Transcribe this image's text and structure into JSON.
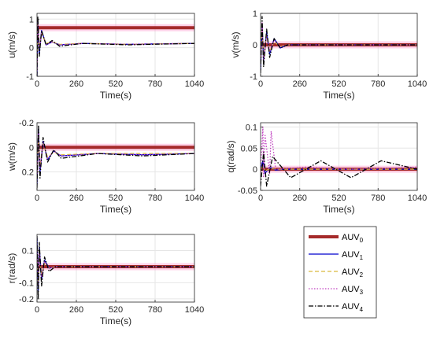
{
  "chart_data": [
    {
      "type": "line",
      "xlabel": "Time(s)",
      "ylabel": "u(m/s)",
      "xlim": [
        0,
        1040
      ],
      "ylim": [
        -1,
        1.2
      ],
      "y_reversed": false,
      "xticks": [
        0,
        260,
        520,
        780,
        1040
      ],
      "xticklabels": [
        "0",
        "260",
        "520",
        "780",
        "1040"
      ],
      "yticks": [
        -1,
        0,
        1
      ],
      "yticklabels": [
        "-1",
        "0",
        "1"
      ],
      "grid": true,
      "series": [
        {
          "name": "AUV0",
          "x": [
            0,
            30,
            1040
          ],
          "y": [
            0.7,
            0.7,
            0.7
          ]
        },
        {
          "name": "AUV1",
          "x": [
            0,
            5,
            15,
            30,
            60,
            100,
            150,
            300,
            600,
            1040
          ],
          "y": [
            -1.0,
            0.9,
            -0.2,
            0.6,
            0.1,
            0.2,
            0.1,
            0.15,
            0.12,
            0.15
          ]
        },
        {
          "name": "AUV2",
          "x": [
            0,
            5,
            15,
            30,
            60,
            100,
            150,
            300,
            600,
            1040
          ],
          "y": [
            -0.8,
            0.8,
            0.0,
            0.5,
            0.15,
            0.2,
            0.12,
            0.15,
            0.12,
            0.15
          ]
        },
        {
          "name": "AUV3",
          "x": [
            0,
            5,
            15,
            30,
            60,
            100,
            150,
            300,
            600,
            1040
          ],
          "y": [
            -0.9,
            1.0,
            -0.1,
            0.55,
            0.1,
            0.2,
            0.1,
            0.15,
            0.12,
            0.15
          ]
        },
        {
          "name": "AUV4",
          "x": [
            0,
            5,
            15,
            30,
            60,
            100,
            150,
            300,
            600,
            1040
          ],
          "y": [
            -1.0,
            1.1,
            -0.3,
            0.6,
            0.1,
            0.25,
            0.05,
            0.15,
            0.1,
            0.15
          ]
        }
      ]
    },
    {
      "type": "line",
      "xlabel": "Time(s)",
      "ylabel": "v(m/s)",
      "xlim": [
        0,
        1040
      ],
      "ylim": [
        -1,
        1
      ],
      "y_reversed": false,
      "xticks": [
        0,
        260,
        520,
        780,
        1040
      ],
      "xticklabels": [
        "0",
        "260",
        "520",
        "780",
        "1040"
      ],
      "yticks": [
        -1,
        0,
        1
      ],
      "yticklabels": [
        "-1",
        "0",
        "1"
      ],
      "grid": true,
      "series": [
        {
          "name": "AUV0",
          "x": [
            0,
            1040
          ],
          "y": [
            0,
            0
          ]
        },
        {
          "name": "AUV1",
          "x": [
            0,
            10,
            20,
            40,
            60,
            90,
            130,
            180,
            1040
          ],
          "y": [
            -0.8,
            0.6,
            -0.5,
            0.4,
            -0.3,
            0.2,
            -0.1,
            0.0,
            0.0
          ]
        },
        {
          "name": "AUV2",
          "x": [
            0,
            10,
            20,
            40,
            60,
            90,
            130,
            180,
            1040
          ],
          "y": [
            -0.6,
            0.5,
            -0.4,
            0.3,
            -0.2,
            0.1,
            -0.05,
            0.0,
            0.0
          ]
        },
        {
          "name": "AUV3",
          "x": [
            0,
            10,
            20,
            40,
            60,
            90,
            130,
            180,
            1040
          ],
          "y": [
            -0.7,
            0.7,
            -0.5,
            0.3,
            -0.2,
            0.15,
            -0.05,
            0.0,
            0.0
          ]
        },
        {
          "name": "AUV4",
          "x": [
            0,
            10,
            20,
            40,
            60,
            90,
            130,
            180,
            1040
          ],
          "y": [
            -0.9,
            0.9,
            -0.7,
            0.5,
            -0.4,
            0.2,
            -0.1,
            0.0,
            0.0
          ]
        }
      ]
    },
    {
      "type": "line",
      "xlabel": "Time(s)",
      "ylabel": "w(m/s)",
      "xlim": [
        0,
        1040
      ],
      "ylim": [
        -0.2,
        0.35
      ],
      "y_reversed": true,
      "xticks": [
        0,
        260,
        520,
        780,
        1040
      ],
      "xticklabels": [
        "0",
        "260",
        "520",
        "780",
        "1040"
      ],
      "yticks": [
        -0.2,
        0,
        0.2
      ],
      "yticklabels": [
        "-0.2",
        "0",
        "0.2"
      ],
      "grid": true,
      "series": [
        {
          "name": "AUV0",
          "x": [
            0,
            1040
          ],
          "y": [
            0,
            0
          ]
        },
        {
          "name": "AUV1",
          "x": [
            0,
            10,
            20,
            40,
            70,
            110,
            160,
            400,
            700,
            1040
          ],
          "y": [
            0.3,
            -0.15,
            0.2,
            -0.05,
            0.1,
            0.03,
            0.07,
            0.05,
            0.06,
            0.05
          ]
        },
        {
          "name": "AUV2",
          "x": [
            0,
            10,
            20,
            40,
            70,
            110,
            160,
            400,
            700,
            1040
          ],
          "y": [
            0.25,
            -0.1,
            0.15,
            -0.03,
            0.08,
            0.04,
            0.06,
            0.05,
            0.05,
            0.05
          ]
        },
        {
          "name": "AUV3",
          "x": [
            0,
            10,
            20,
            40,
            70,
            110,
            160,
            400,
            700,
            1040
          ],
          "y": [
            0.28,
            -0.12,
            0.18,
            -0.04,
            0.09,
            0.03,
            0.07,
            0.05,
            0.06,
            0.05
          ]
        },
        {
          "name": "AUV4",
          "x": [
            0,
            10,
            20,
            40,
            70,
            110,
            160,
            400,
            700,
            1040
          ],
          "y": [
            0.33,
            -0.18,
            0.25,
            -0.08,
            0.12,
            0.02,
            0.09,
            0.05,
            0.07,
            0.05
          ]
        }
      ]
    },
    {
      "type": "line",
      "xlabel": "Time(s)",
      "ylabel": "q(rad/s)",
      "xlim": [
        0,
        1040
      ],
      "ylim": [
        -0.05,
        0.11
      ],
      "y_reversed": false,
      "xticks": [
        0,
        260,
        520,
        780,
        1040
      ],
      "xticklabels": [
        "0",
        "260",
        "520",
        "780",
        "1040"
      ],
      "yticks": [
        -0.05,
        0,
        0.05,
        0.1
      ],
      "yticklabels": [
        "-0.05",
        "0",
        "0.05",
        "0.1"
      ],
      "grid": true,
      "series": [
        {
          "name": "AUV0",
          "x": [
            0,
            1040
          ],
          "y": [
            0,
            0
          ]
        },
        {
          "name": "AUV1",
          "x": [
            0,
            15,
            30,
            60,
            100,
            150,
            1040
          ],
          "y": [
            0,
            0.02,
            -0.01,
            0.005,
            -0.002,
            0,
            0
          ]
        },
        {
          "name": "AUV2",
          "x": [
            0,
            15,
            30,
            60,
            100,
            150,
            1040
          ],
          "y": [
            0,
            0.01,
            -0.005,
            0.002,
            0,
            0,
            0
          ]
        },
        {
          "name": "AUV3",
          "x": [
            0,
            15,
            20,
            30,
            60,
            70,
            100,
            300,
            600,
            1040
          ],
          "y": [
            0,
            0.1,
            -0.02,
            0.08,
            -0.01,
            0.09,
            0.0,
            0.005,
            0.0,
            0.005
          ]
        },
        {
          "name": "AUV4",
          "x": [
            0,
            20,
            40,
            80,
            200,
            400,
            600,
            800,
            1040
          ],
          "y": [
            -0.04,
            0.04,
            -0.04,
            0.03,
            -0.02,
            0.02,
            -0.02,
            0.02,
            0.0
          ]
        }
      ]
    },
    {
      "type": "line",
      "xlabel": "Time(s)",
      "ylabel": "r(rad/s)",
      "xlim": [
        0,
        1040
      ],
      "ylim": [
        -0.22,
        0.2
      ],
      "y_reversed": false,
      "xticks": [
        0,
        260,
        520,
        780,
        1040
      ],
      "xticklabels": [
        "0",
        "260",
        "520",
        "780",
        "1040"
      ],
      "yticks": [
        -0.2,
        -0.1,
        0,
        0.1
      ],
      "yticklabels": [
        "-0.2",
        "-0.1",
        "0",
        "0.1"
      ],
      "grid": true,
      "series": [
        {
          "name": "AUV0",
          "x": [
            0,
            1040
          ],
          "y": [
            0,
            0
          ]
        },
        {
          "name": "AUV1",
          "x": [
            0,
            8,
            15,
            30,
            50,
            80,
            120,
            1040
          ],
          "y": [
            0.18,
            -0.15,
            0.12,
            -0.08,
            0.04,
            -0.01,
            0.0,
            0.0
          ]
        },
        {
          "name": "AUV2",
          "x": [
            0,
            8,
            15,
            30,
            50,
            80,
            120,
            1040
          ],
          "y": [
            0.12,
            -0.1,
            0.08,
            -0.05,
            0.02,
            -0.01,
            0.0,
            0.0
          ]
        },
        {
          "name": "AUV3",
          "x": [
            0,
            8,
            15,
            30,
            50,
            80,
            120,
            1040
          ],
          "y": [
            0.15,
            -0.12,
            0.1,
            -0.06,
            0.03,
            -0.01,
            0.0,
            0.0
          ]
        },
        {
          "name": "AUV4",
          "x": [
            0,
            8,
            15,
            30,
            50,
            80,
            120,
            1040
          ],
          "y": [
            0.19,
            -0.2,
            0.15,
            -0.12,
            0.06,
            -0.03,
            0.0,
            0.0
          ]
        }
      ]
    }
  ],
  "legend": {
    "placement": "bottom-right",
    "entries": [
      {
        "main": "AUV",
        "sub": "0",
        "color": "#a52a2a",
        "style": "thick-solid"
      },
      {
        "main": "AUV",
        "sub": "1",
        "color": "#0000cd",
        "style": "solid"
      },
      {
        "main": "AUV",
        "sub": "2",
        "color": "#dab93c",
        "style": "dashed"
      },
      {
        "main": "AUV",
        "sub": "3",
        "color": "#c040c0",
        "style": "dotted"
      },
      {
        "main": "AUV",
        "sub": "4",
        "color": "#000000",
        "style": "dashdot"
      }
    ]
  }
}
